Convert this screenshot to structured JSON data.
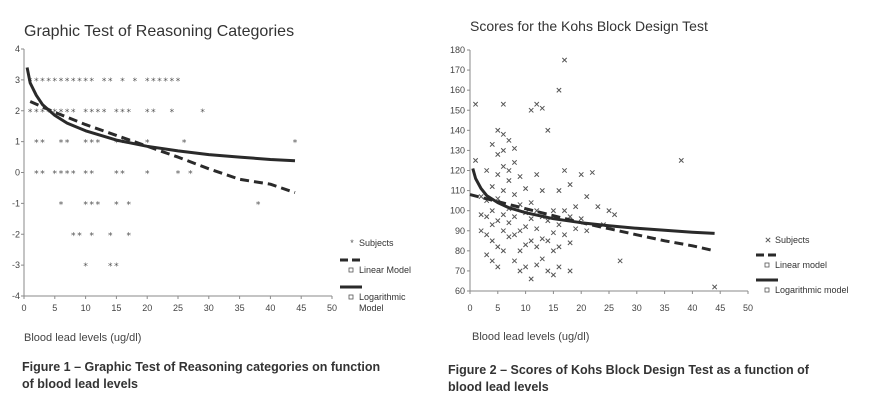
{
  "chart_data": [
    {
      "type": "scatter",
      "title": "Graphic Test of Reasoning Categories",
      "xlabel": "Blood lead levels (ug/dl)",
      "ylabel": "",
      "xlim": [
        0,
        50
      ],
      "ylim": [
        -4,
        4
      ],
      "xticks": [
        0,
        5,
        10,
        15,
        20,
        25,
        30,
        35,
        40,
        45,
        50
      ],
      "yticks": [
        4,
        3,
        2,
        1,
        0,
        -1,
        -2,
        -3,
        -4
      ],
      "marker": "*",
      "legend": {
        "position": "right",
        "entries": [
          "Subjects",
          "Linear Model",
          "Logarithmic Model"
        ]
      },
      "series": [
        {
          "name": "Subjects",
          "kind": "scatter",
          "points": [
            [
              1,
              3
            ],
            [
              2,
              3
            ],
            [
              3,
              3
            ],
            [
              4,
              3
            ],
            [
              5,
              3
            ],
            [
              6,
              3
            ],
            [
              7,
              3
            ],
            [
              8,
              3
            ],
            [
              9,
              3
            ],
            [
              10,
              3
            ],
            [
              11,
              3
            ],
            [
              13,
              3
            ],
            [
              14,
              3
            ],
            [
              16,
              3
            ],
            [
              18,
              3
            ],
            [
              20,
              3
            ],
            [
              21,
              3
            ],
            [
              22,
              3
            ],
            [
              23,
              3
            ],
            [
              24,
              3
            ],
            [
              25,
              3
            ],
            [
              1,
              2
            ],
            [
              2,
              2
            ],
            [
              3,
              2
            ],
            [
              4,
              2
            ],
            [
              5,
              2
            ],
            [
              6,
              2
            ],
            [
              7,
              2
            ],
            [
              8,
              2
            ],
            [
              10,
              2
            ],
            [
              11,
              2
            ],
            [
              12,
              2
            ],
            [
              13,
              2
            ],
            [
              15,
              2
            ],
            [
              16,
              2
            ],
            [
              17,
              2
            ],
            [
              20,
              2
            ],
            [
              21,
              2
            ],
            [
              24,
              2
            ],
            [
              29,
              2
            ],
            [
              2,
              1
            ],
            [
              3,
              1
            ],
            [
              6,
              1
            ],
            [
              7,
              1
            ],
            [
              10,
              1
            ],
            [
              11,
              1
            ],
            [
              12,
              1
            ],
            [
              15,
              1
            ],
            [
              16,
              1
            ],
            [
              17,
              1
            ],
            [
              20,
              1
            ],
            [
              26,
              1
            ],
            [
              44,
              1
            ],
            [
              2,
              0
            ],
            [
              3,
              0
            ],
            [
              5,
              0
            ],
            [
              6,
              0
            ],
            [
              7,
              0
            ],
            [
              8,
              0
            ],
            [
              10,
              0
            ],
            [
              11,
              0
            ],
            [
              15,
              0
            ],
            [
              16,
              0
            ],
            [
              20,
              0
            ],
            [
              25,
              0
            ],
            [
              27,
              0
            ],
            [
              6,
              -1
            ],
            [
              10,
              -1
            ],
            [
              11,
              -1
            ],
            [
              12,
              -1
            ],
            [
              15,
              -1
            ],
            [
              17,
              -1
            ],
            [
              38,
              -1
            ],
            [
              8,
              -2
            ],
            [
              9,
              -2
            ],
            [
              11,
              -2
            ],
            [
              14,
              -2
            ],
            [
              17,
              -2
            ],
            [
              10,
              -3
            ],
            [
              14,
              -3
            ],
            [
              15,
              -3
            ]
          ]
        },
        {
          "name": "Linear Model",
          "kind": "line",
          "style": "dashed",
          "points": [
            [
              1,
              2.3
            ],
            [
              5,
              1.95
            ],
            [
              10,
              1.55
            ],
            [
              15,
              1.2
            ],
            [
              20,
              0.85
            ],
            [
              25,
              0.5
            ],
            [
              30,
              0.12
            ],
            [
              35,
              -0.22
            ],
            [
              40,
              -0.38
            ],
            [
              44,
              -0.65
            ]
          ]
        },
        {
          "name": "Logarithmic Model",
          "kind": "line",
          "style": "solid",
          "points": [
            [
              0.5,
              3.4
            ],
            [
              1,
              2.9
            ],
            [
              2,
              2.5
            ],
            [
              3,
              2.2
            ],
            [
              5,
              1.85
            ],
            [
              7,
              1.6
            ],
            [
              10,
              1.35
            ],
            [
              15,
              1.05
            ],
            [
              20,
              0.85
            ],
            [
              25,
              0.7
            ],
            [
              30,
              0.58
            ],
            [
              35,
              0.5
            ],
            [
              40,
              0.42
            ],
            [
              44,
              0.38
            ]
          ]
        }
      ]
    },
    {
      "type": "scatter",
      "title": "Scores for the Kohs Block Design Test",
      "xlabel": "Blood lead levels (ug/dl)",
      "ylabel": "",
      "xlim": [
        0,
        50
      ],
      "ylim": [
        60,
        180
      ],
      "xticks": [
        0,
        5,
        10,
        15,
        20,
        25,
        30,
        35,
        40,
        45,
        50
      ],
      "yticks": [
        180,
        170,
        160,
        150,
        140,
        130,
        120,
        110,
        100,
        90,
        80,
        70,
        60
      ],
      "marker": "x",
      "legend": {
        "position": "right",
        "entries": [
          "Subjects",
          "Linear model",
          "Logarithmic model"
        ]
      },
      "series": [
        {
          "name": "Subjects",
          "kind": "scatter",
          "points": [
            [
              1,
              153
            ],
            [
              1,
              125
            ],
            [
              2,
              107
            ],
            [
              2,
              98
            ],
            [
              2,
              90
            ],
            [
              3,
              120
            ],
            [
              3,
              105
            ],
            [
              3,
              97
            ],
            [
              3,
              88
            ],
            [
              3,
              78
            ],
            [
              4,
              133
            ],
            [
              4,
              112
            ],
            [
              4,
              100
            ],
            [
              4,
              93
            ],
            [
              4,
              85
            ],
            [
              4,
              75
            ],
            [
              5,
              140
            ],
            [
              5,
              128
            ],
            [
              5,
              118
            ],
            [
              5,
              106
            ],
            [
              5,
              95
            ],
            [
              5,
              82
            ],
            [
              5,
              72
            ],
            [
              6,
              153
            ],
            [
              6,
              138
            ],
            [
              6,
              130
            ],
            [
              6,
              122
            ],
            [
              6,
              110
            ],
            [
              6,
              98
            ],
            [
              6,
              90
            ],
            [
              6,
              80
            ],
            [
              7,
              135
            ],
            [
              7,
              120
            ],
            [
              7,
              115
            ],
            [
              7,
              101
            ],
            [
              7,
              94
            ],
            [
              7,
              87
            ],
            [
              8,
              131
            ],
            [
              8,
              124
            ],
            [
              8,
              108
            ],
            [
              8,
              97
            ],
            [
              8,
              88
            ],
            [
              8,
              75
            ],
            [
              9,
              117
            ],
            [
              9,
              103
            ],
            [
              9,
              90
            ],
            [
              9,
              80
            ],
            [
              9,
              70
            ],
            [
              10,
              111
            ],
            [
              10,
              99
            ],
            [
              10,
              92
            ],
            [
              10,
              83
            ],
            [
              10,
              72
            ],
            [
              11,
              150
            ],
            [
              11,
              104
            ],
            [
              11,
              96
            ],
            [
              11,
              85
            ],
            [
              11,
              66
            ],
            [
              12,
              153
            ],
            [
              12,
              118
            ],
            [
              12,
              100
            ],
            [
              12,
              91
            ],
            [
              12,
              82
            ],
            [
              12,
              73
            ],
            [
              13,
              151
            ],
            [
              13,
              110
            ],
            [
              13,
              97
            ],
            [
              13,
              86
            ],
            [
              13,
              76
            ],
            [
              14,
              140
            ],
            [
              14,
              95
            ],
            [
              14,
              85
            ],
            [
              14,
              70
            ],
            [
              15,
              100
            ],
            [
              15,
              89
            ],
            [
              15,
              80
            ],
            [
              15,
              68
            ],
            [
              16,
              160
            ],
            [
              16,
              110
            ],
            [
              16,
              93
            ],
            [
              16,
              82
            ],
            [
              16,
              72
            ],
            [
              17,
              175
            ],
            [
              17,
              120
            ],
            [
              17,
              100
            ],
            [
              17,
              88
            ],
            [
              18,
              113
            ],
            [
              18,
              97
            ],
            [
              18,
              84
            ],
            [
              18,
              70
            ],
            [
              19,
              102
            ],
            [
              19,
              91
            ],
            [
              20,
              118
            ],
            [
              20,
              96
            ],
            [
              21,
              107
            ],
            [
              21,
              90
            ],
            [
              22,
              119
            ],
            [
              23,
              102
            ],
            [
              24,
              93
            ],
            [
              25,
              100
            ],
            [
              26,
              98
            ],
            [
              27,
              75
            ],
            [
              38,
              125
            ],
            [
              44,
              62
            ]
          ]
        },
        {
          "name": "Linear model",
          "kind": "line",
          "style": "dashed",
          "points": [
            [
              0,
              108
            ],
            [
              5,
              104.5
            ],
            [
              10,
              101
            ],
            [
              15,
              97.5
            ],
            [
              20,
              94
            ],
            [
              25,
              91
            ],
            [
              30,
              88
            ],
            [
              35,
              85
            ],
            [
              40,
              82.5
            ],
            [
              44,
              80
            ]
          ]
        },
        {
          "name": "Logarithmic model",
          "kind": "line",
          "style": "solid",
          "points": [
            [
              0.5,
              121
            ],
            [
              1,
              116
            ],
            [
              2,
              111
            ],
            [
              3,
              107.5
            ],
            [
              5,
              104
            ],
            [
              7,
              101.5
            ],
            [
              10,
              99
            ],
            [
              15,
              96
            ],
            [
              20,
              94
            ],
            [
              25,
              92.5
            ],
            [
              30,
              91.2
            ],
            [
              35,
              90.2
            ],
            [
              40,
              89.3
            ],
            [
              44,
              88.7
            ]
          ]
        }
      ]
    }
  ],
  "captions": {
    "left_line1": "Figure 1 – Graphic Test of Reasoning categories on function",
    "left_line2": "of blood lead levels",
    "right_line1": "Figure 2 – Scores of Kohs Block Design Test as a function of",
    "right_line2": "blood lead levels"
  },
  "colors": {
    "axis": "#8a8a8a",
    "line": "#2a2a2a",
    "marker": "#555555",
    "text": "#333333"
  }
}
